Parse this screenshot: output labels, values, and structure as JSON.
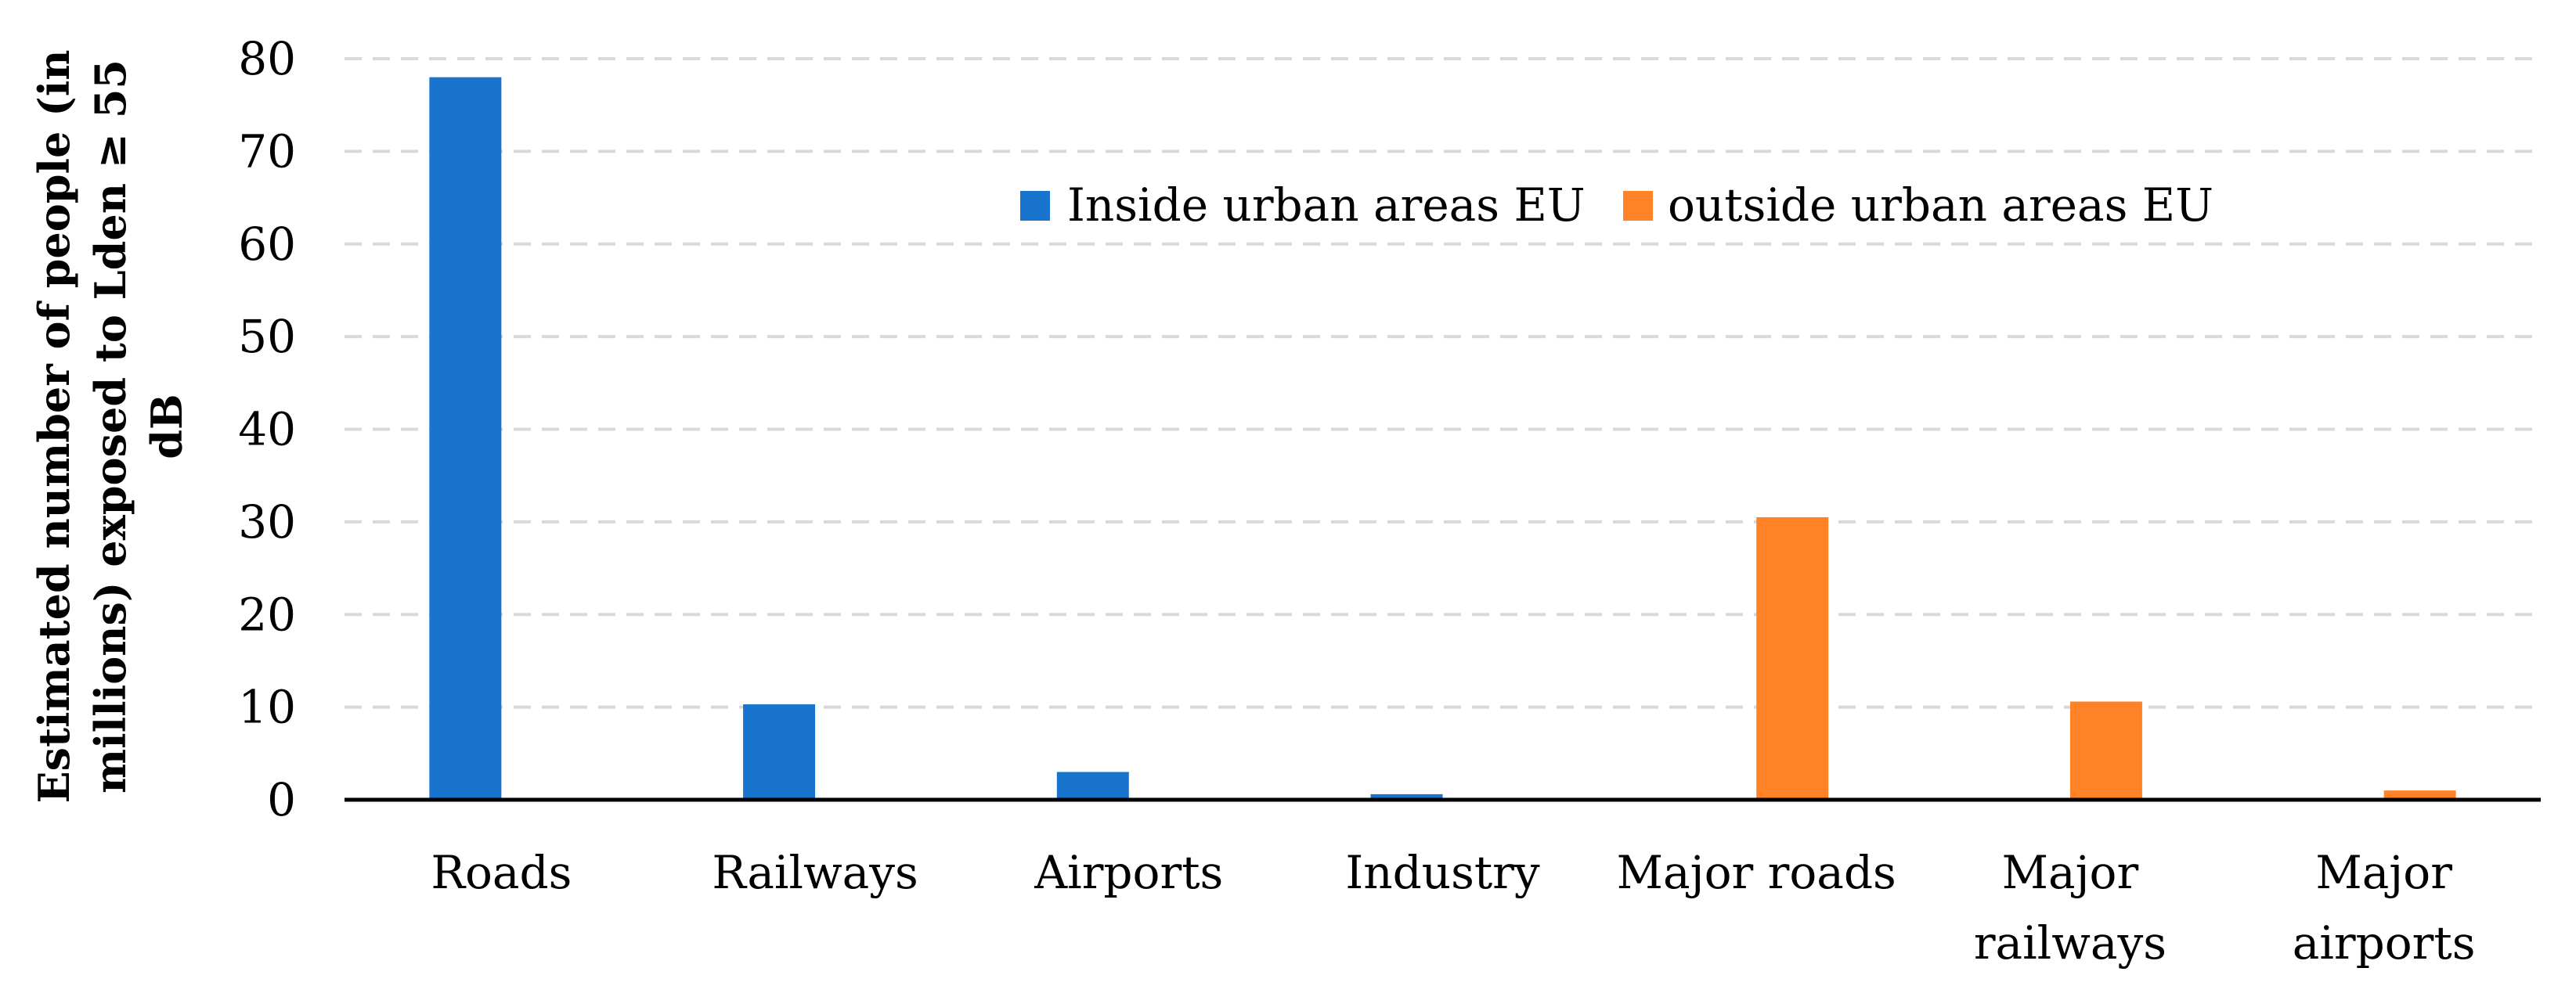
{
  "chart_data": {
    "type": "bar",
    "title": "",
    "xlabel": "",
    "ylabel_lines": [
      "Estimated number of people (in",
      "millions) exposed to Lden ≥ 55",
      "dB"
    ],
    "ylim": [
      0,
      80
    ],
    "yticks": [
      "0",
      "10",
      "20",
      "30",
      "40",
      "50",
      "60",
      "70",
      "80"
    ],
    "grid": true,
    "legend_position": "top-right",
    "categories": [
      {
        "lines": [
          "Roads"
        ]
      },
      {
        "lines": [
          "Railways"
        ]
      },
      {
        "lines": [
          "Airports"
        ]
      },
      {
        "lines": [
          "Industry"
        ]
      },
      {
        "lines": [
          "Major roads"
        ]
      },
      {
        "lines": [
          "Major",
          "railways"
        ]
      },
      {
        "lines": [
          "Major",
          "airports"
        ]
      }
    ],
    "series": [
      {
        "name": "Inside urban areas EU",
        "color": "#1874CD",
        "values": [
          78,
          10.3,
          3,
          0.6,
          0,
          0,
          0
        ]
      },
      {
        "name": "outside urban areas EU",
        "color": "#FF8227",
        "values": [
          0,
          0,
          0,
          0,
          30.5,
          10.6,
          1
        ]
      }
    ]
  }
}
